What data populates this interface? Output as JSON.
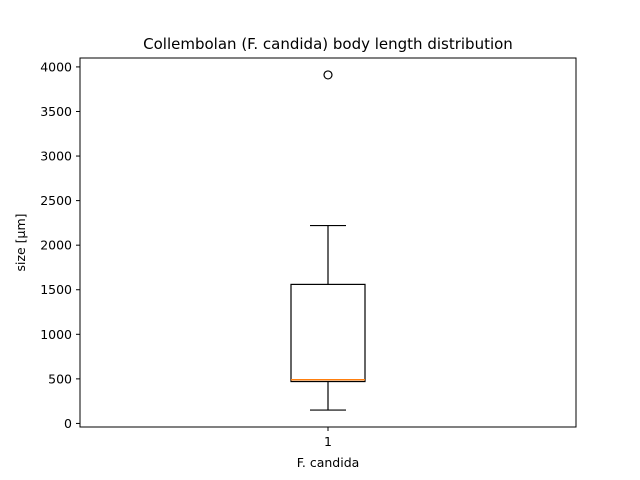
{
  "chart_data": {
    "type": "box",
    "title": "Collembolan (F. candida) body length distribution",
    "xlabel": "F. candida",
    "ylabel": "size [µm]",
    "categories": [
      "1"
    ],
    "ylim": [
      -40,
      4100
    ],
    "yticks": [
      0,
      500,
      1000,
      1500,
      2000,
      2500,
      3000,
      3500,
      4000
    ],
    "grid": false,
    "boxes": [
      {
        "label": "1",
        "whisker_low": 150,
        "q1": 470,
        "median": 490,
        "q3": 1560,
        "whisker_high": 2220,
        "outliers": [
          3910
        ]
      }
    ],
    "colors": {
      "box": "#000000",
      "median": "#ff7f0e",
      "axes": "#000000"
    }
  }
}
